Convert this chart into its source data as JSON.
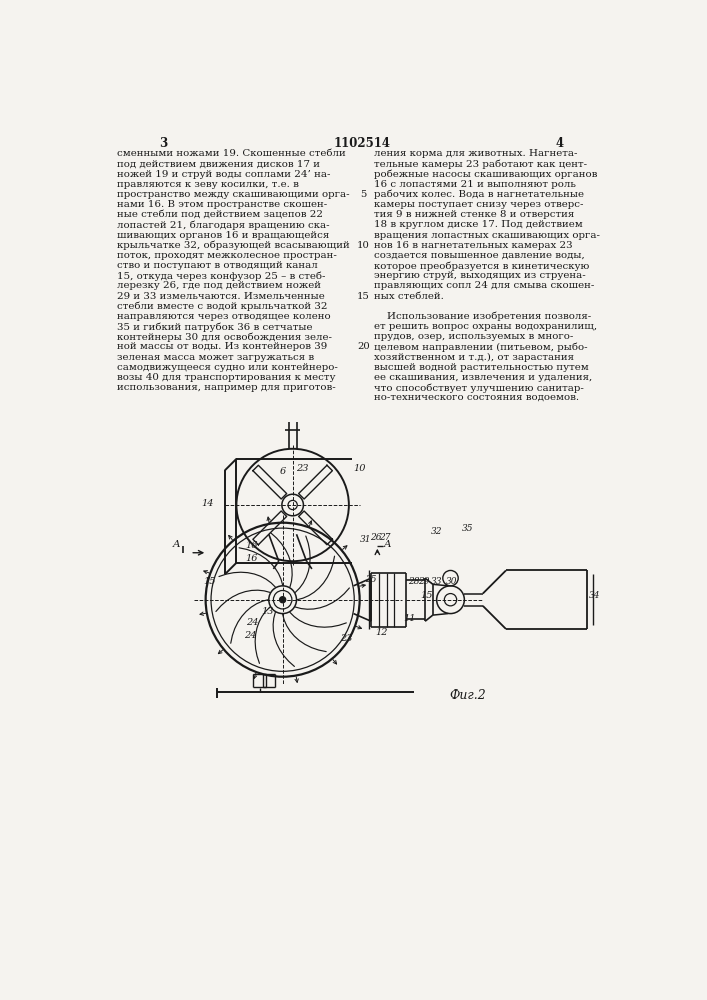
{
  "bg_color": "#f5f3ef",
  "line_color": "#1a1a1a",
  "text_color": "#1a1a1a",
  "page_number_left": "3",
  "page_number_center": "1102514",
  "page_number_right": "4",
  "col1_lines": [
    "сменными ножами 19. Скошенные стебли",
    "под действием движения дисков 17 и",
    "ножей 19 и струй воды соплами 24’ на-",
    "правляются к зеву косилки, т.е. в",
    "пространство между скашивающими орга-",
    "нами 16. В этом пространстве скошен-",
    "ные стебли под действием зацепов 22",
    "лопастей 21, благодаря вращению ска-",
    "шивающих органов 16 и вращающейся",
    "крыльчатке 32, образующей всасывающий",
    "поток, проходят межколесное простран-",
    "ство и поступают в отводящий канал",
    "15, откуда через конфузор 25 – в стеб-",
    "лерезку 26, где под действием ножей",
    "29 и 33 измельчаются. Измельченные",
    "стебли вместе с водой крыльчаткой 32",
    "направляются через отводящее колено",
    "35 и гибкий патрубок 36 в сетчатые",
    "контейнеры 30 для освобождения зеле-",
    "ной массы от воды. Из контейнеров 39",
    "зеленая масса может загружаться в",
    "самодвижущееся судно или контейнеро-",
    "возы 40 для транспортирования к месту",
    "использования, например для приготов-"
  ],
  "col2_lines": [
    "ления корма для животных. Нагнета-",
    "тельные камеры 23 работают как цент-",
    "робежные насосы скашивающих органов",
    "16 с лопастями 21 и выполняют роль",
    "рабочих колес. Вода в нагнетательные",
    "камеры поступает снизу через отверс-",
    "тия 9 в нижней стенке 8 и отверстия",
    "18 в круглом диске 17. Под действием",
    "вращения лопастных скашивающих орга-",
    "нов 16 в нагнетательных камерах 23",
    "создается повышенное давление воды,",
    "которое преобразуется в кинетическую",
    "энергию струй, выходящих из струена-",
    "правляющих сопл 24 для смыва скошен-",
    "ных стеблей.",
    "",
    "    Использование изобретения позволя-",
    "ет решить вопрос охраны водохранилищ,",
    "прудов, озер, используемых в много-",
    "целевом направлении (питьевом, рыбо-",
    "хозяйственном и т.д.), от зарастания",
    "высшей водной растительностью путем",
    "ее скашивания, извлечения и удаления,",
    "что способствует улучшению санитар-",
    "но-технического состояния водоемов."
  ],
  "line_number_rows": [
    4,
    9,
    14,
    19
  ],
  "line_numbers": [
    "5",
    "10",
    "15",
    "20"
  ],
  "fig_label": "Фиг.2"
}
